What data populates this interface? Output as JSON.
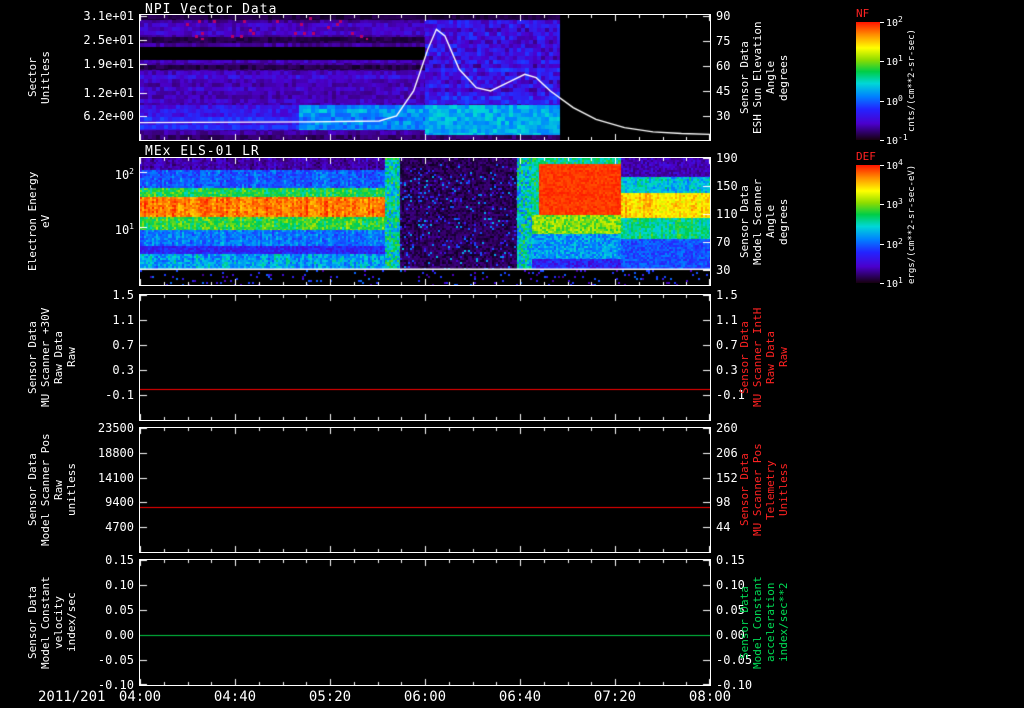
{
  "figure": {
    "background": "#000000",
    "foreground": "#ffffff",
    "x_axis": {
      "date_label": "2011/201",
      "tick_labels": [
        "04:00",
        "04:40",
        "05:20",
        "06:00",
        "06:40",
        "07:20",
        "08:00"
      ]
    }
  },
  "colorbars": [
    {
      "name": "NF",
      "name_color": "#ff2222",
      "tick_labels": [
        "10^2",
        "10^1",
        "10^0",
        "10^-1"
      ],
      "unit": "cnts/(cm**2-sr-sec)"
    },
    {
      "name": "DEF",
      "name_color": "#ff2222",
      "tick_labels": [
        "10^4",
        "10^3",
        "10^2",
        "10^1"
      ],
      "unit": "ergs/(cm**2-sr-sec-eV)"
    }
  ],
  "chart_data": [
    {
      "type": "heatmap",
      "title": "NPI Vector Data",
      "x_range": [
        "04:00",
        "08:00"
      ],
      "y_left": {
        "label_lines": [
          "Sector",
          "Unitless"
        ],
        "scale": "linear",
        "range": [
          0.25,
          31.25
        ],
        "ticks": [
          {
            "v": 31,
            "s": "3.1e+01"
          },
          {
            "v": 25,
            "s": "2.5e+01"
          },
          {
            "v": 19,
            "s": "1.9e+01"
          },
          {
            "v": 12,
            "s": "1.2e+01"
          },
          {
            "v": 6.2,
            "s": "6.2e+00"
          }
        ]
      },
      "y_right": {
        "label_lines": [
          "Sensor Data",
          "ESH Sun Elevation",
          "Angle",
          "degrees"
        ],
        "color": "#ffffff",
        "scale": "linear",
        "range": [
          15.6,
          90.6
        ],
        "ticks": [
          {
            "v": 90,
            "s": "90"
          },
          {
            "v": 75,
            "s": "75"
          },
          {
            "v": 60,
            "s": "60"
          },
          {
            "v": 45,
            "s": "45"
          },
          {
            "v": 30,
            "s": "30"
          }
        ]
      },
      "colorbar": "NF",
      "heatmap": {
        "seed": 7,
        "cell": 4,
        "data_end_frac": 0.737,
        "regions": [
          {
            "t": [
              0,
              0.737
            ],
            "y": [
              0,
              1
            ],
            "v": 0.14,
            "n": 0.1,
            "rv": 0.1
          },
          {
            "t": [
              0,
              0.737
            ],
            "y": [
              0,
              0.04
            ],
            "v": 0.04,
            "n": 0.05
          },
          {
            "t": [
              0,
              0.737
            ],
            "y": [
              0.18,
              0.22
            ],
            "v": 0.05,
            "n": 0.05
          },
          {
            "t": [
              0,
              0.5
            ],
            "y": [
              0.26,
              0.36
            ],
            "color": "#000000"
          },
          {
            "t": [
              0,
              0.737
            ],
            "y": [
              0.4,
              0.44
            ],
            "v": 0.05,
            "n": 0.06
          },
          {
            "t": [
              0,
              0.737
            ],
            "y": [
              0.48,
              0.72
            ],
            "v": 0.18,
            "n": 0.1,
            "rv": 0.08
          },
          {
            "t": [
              0,
              0.737
            ],
            "y": [
              0.72,
              0.92
            ],
            "v": 0.26,
            "n": 0.1,
            "rv": 0.08
          },
          {
            "t": [
              0.28,
              0.737
            ],
            "y": [
              0.72,
              0.92
            ],
            "v": 0.4,
            "n": 0.12,
            "rv": 0.08
          },
          {
            "t": [
              0,
              0.737
            ],
            "y": [
              0.96,
              1
            ],
            "v": 0.08,
            "n": 0.08
          },
          {
            "t": [
              0.5,
              0.737
            ],
            "y": [
              0.04,
              0.72
            ],
            "v": 0.22,
            "n": 0.16,
            "rv": 0.1
          },
          {
            "t": [
              0.5,
              0.737
            ],
            "y": [
              0.72,
              0.96
            ],
            "v": 0.45,
            "n": 0.12
          },
          {
            "t": [
              0.06,
              0.4
            ],
            "y": [
              0.02,
              0.2
            ],
            "color": "#bb0066",
            "sparse": 0.05,
            "cell": 3
          },
          {
            "t": [
              0.737,
              1
            ],
            "y": [
              0,
              1
            ],
            "color": "#000000",
            "cell": 6
          }
        ]
      },
      "overlay_line": {
        "name": "ESH Sun Elevation Angle (degrees)",
        "color": "#ffffff",
        "axis": "right",
        "points": [
          [
            0,
            26
          ],
          [
            0.3,
            26.5
          ],
          [
            0.42,
            27
          ],
          [
            0.45,
            30
          ],
          [
            0.48,
            45
          ],
          [
            0.505,
            70
          ],
          [
            0.52,
            82
          ],
          [
            0.535,
            78
          ],
          [
            0.56,
            58
          ],
          [
            0.59,
            47
          ],
          [
            0.615,
            45
          ],
          [
            0.645,
            50
          ],
          [
            0.675,
            55
          ],
          [
            0.695,
            53
          ],
          [
            0.72,
            45
          ],
          [
            0.76,
            35
          ],
          [
            0.8,
            28
          ],
          [
            0.85,
            23
          ],
          [
            0.9,
            20.5
          ],
          [
            0.95,
            19.5
          ],
          [
            1,
            19
          ]
        ]
      }
    },
    {
      "type": "heatmap",
      "title": "MEx ELS-01 LR",
      "x_range": [
        "04:00",
        "08:00"
      ],
      "y_left": {
        "label_lines": [
          "Electron Energy",
          "eV"
        ],
        "scale": "log",
        "range": [
          0.88,
          180
        ],
        "ticks": [
          {
            "v": 100,
            "s": "10^2"
          },
          {
            "v": 10,
            "s": "10^1"
          }
        ]
      },
      "y_right": {
        "label_lines": [
          "Sensor Data",
          "Model Scanner",
          "Angle",
          "degrees"
        ],
        "color": "#ffffff",
        "scale": "linear",
        "range": [
          8.6,
          190
        ],
        "ticks": [
          {
            "v": 190,
            "s": "190"
          },
          {
            "v": 150,
            "s": "150"
          },
          {
            "v": 110,
            "s": "110"
          },
          {
            "v": 70,
            "s": "70"
          },
          {
            "v": 30,
            "s": "30"
          }
        ]
      },
      "colorbar": "DEF",
      "heatmap": {
        "seed": 11,
        "cell": 2,
        "regions": [
          {
            "t": [
              0,
              1
            ],
            "y": [
              0,
              1
            ],
            "v": 0.09,
            "n": 0.12
          },
          {
            "t": [
              0,
              0.44
            ],
            "y": [
              0,
              0.1
            ],
            "v": 0.14,
            "n": 0.12,
            "cv": 0.08
          },
          {
            "t": [
              0,
              0.44
            ],
            "y": [
              0.1,
              0.24
            ],
            "v": 0.34,
            "n": 0.16,
            "cv": 0.1
          },
          {
            "t": [
              0,
              0.44
            ],
            "y": [
              0.24,
              0.31
            ],
            "v": 0.6,
            "n": 0.14,
            "cv": 0.1
          },
          {
            "t": [
              0,
              0.44
            ],
            "y": [
              0.31,
              0.47
            ],
            "v": 0.92,
            "n": 0.1,
            "cv": 0.08
          },
          {
            "t": [
              0,
              0.44
            ],
            "y": [
              0.47,
              0.57
            ],
            "v": 0.62,
            "n": 0.14,
            "cv": 0.1
          },
          {
            "t": [
              0,
              0.44
            ],
            "y": [
              0.57,
              0.7
            ],
            "v": 0.38,
            "n": 0.14,
            "cv": 0.1
          },
          {
            "t": [
              0,
              0.44
            ],
            "y": [
              0.7,
              0.76
            ],
            "v": 0.26,
            "n": 0.12
          },
          {
            "t": [
              0,
              0.44
            ],
            "y": [
              0.76,
              0.87
            ],
            "v": 0.44,
            "n": 0.18,
            "cv": 0.12
          },
          {
            "t": [
              0.43,
              0.457
            ],
            "y": [
              0,
              0.87
            ],
            "v": 0.52,
            "n": 0.28
          },
          {
            "t": [
              0.457,
              0.663
            ],
            "y": [
              0,
              0.87
            ],
            "v": 0.06,
            "n": 0.1
          },
          {
            "t": [
              0.457,
              0.663
            ],
            "y": [
              0.05,
              0.87
            ],
            "v": 0.32,
            "n": 0.3,
            "sparse": 0.1
          },
          {
            "t": [
              0.663,
              0.688
            ],
            "y": [
              0,
              0.87
            ],
            "v": 0.5,
            "n": 0.3
          },
          {
            "t": [
              0.688,
              0.845
            ],
            "y": [
              0,
              0.06
            ],
            "v": 0.55,
            "n": 0.2
          },
          {
            "t": [
              0.688,
              0.7
            ],
            "y": [
              0.05,
              0.45
            ],
            "v": 0.55,
            "n": 0.2
          },
          {
            "t": [
              0.7,
              0.845
            ],
            "y": [
              0.05,
              0.45
            ],
            "v": 0.97,
            "n": 0.05
          },
          {
            "t": [
              0.688,
              0.845
            ],
            "y": [
              0.45,
              0.6
            ],
            "v": 0.68,
            "n": 0.15
          },
          {
            "t": [
              0.688,
              0.845
            ],
            "y": [
              0.6,
              0.8
            ],
            "v": 0.42,
            "n": 0.18
          },
          {
            "t": [
              0.688,
              0.845
            ],
            "y": [
              0.8,
              0.87
            ],
            "v": 0.25,
            "n": 0.15
          },
          {
            "t": [
              0.845,
              1
            ],
            "y": [
              0,
              0.15
            ],
            "v": 0.16,
            "n": 0.14
          },
          {
            "t": [
              0.845,
              1
            ],
            "y": [
              0.15,
              0.28
            ],
            "v": 0.48,
            "n": 0.16,
            "cv": 0.1
          },
          {
            "t": [
              0.845,
              1
            ],
            "y": [
              0.28,
              0.48
            ],
            "v": 0.82,
            "n": 0.12,
            "cv": 0.08
          },
          {
            "t": [
              0.845,
              1
            ],
            "y": [
              0.48,
              0.64
            ],
            "v": 0.55,
            "n": 0.15,
            "cv": 0.1
          },
          {
            "t": [
              0.845,
              1
            ],
            "y": [
              0.64,
              0.87
            ],
            "v": 0.33,
            "n": 0.15
          },
          {
            "t": [
              0,
              1
            ],
            "y": [
              0.885,
              1
            ],
            "color": "#000000"
          },
          {
            "t": [
              0,
              1
            ],
            "y": [
              0.885,
              1
            ],
            "v": 0.25,
            "n": 0.25,
            "sparse": 0.07
          }
        ]
      },
      "overlay_line": {
        "name": "low-energy-marker-line",
        "color": "#ffffff",
        "axis": "left",
        "constant": 1.7
      }
    },
    {
      "type": "line",
      "y_left": {
        "label_lines": [
          "Sensor Data",
          "MU Scanner +30V",
          "Raw Data",
          "Raw"
        ],
        "scale": "linear",
        "range": [
          -0.5,
          1.5
        ],
        "ticks": [
          {
            "v": 1.5,
            "s": "1.5"
          },
          {
            "v": 1.1,
            "s": "1.1"
          },
          {
            "v": 0.7,
            "s": "0.7"
          },
          {
            "v": 0.3,
            "s": "0.3"
          },
          {
            "v": -0.1,
            "s": "-0.1"
          }
        ]
      },
      "y_right": {
        "label_lines": [
          "Sensor Data",
          "MU Scanner IntH",
          "Raw Data",
          "Raw"
        ],
        "color": "#ff2222",
        "scale": "linear",
        "range": [
          -0.5,
          1.5
        ],
        "ticks": [
          {
            "v": 1.5,
            "s": "1.5"
          },
          {
            "v": 1.1,
            "s": "1.1"
          },
          {
            "v": 0.7,
            "s": "0.7"
          },
          {
            "v": 0.3,
            "s": "0.3"
          },
          {
            "v": -0.1,
            "s": "-0.1"
          }
        ]
      },
      "series": [
        {
          "name": "MU Scanner +30V Raw Data Raw",
          "color": "#ff0000",
          "axis": "left",
          "constant": 0.0
        }
      ]
    },
    {
      "type": "line",
      "y_left": {
        "label_lines": [
          "Sensor Data",
          "Model Scanner Pos",
          "Raw",
          "unitless"
        ],
        "scale": "linear",
        "range": [
          0,
          23500
        ],
        "ticks": [
          {
            "v": 23500,
            "s": "23500"
          },
          {
            "v": 18800,
            "s": "18800"
          },
          {
            "v": 14100,
            "s": "14100"
          },
          {
            "v": 9400,
            "s": "9400"
          },
          {
            "v": 4700,
            "s": "4700"
          }
        ]
      },
      "y_right": {
        "label_lines": [
          "Sensor Data",
          "MU Scanner Pos",
          "Telemetry",
          "Unitless"
        ],
        "color": "#ff2222",
        "scale": "linear",
        "range": [
          -10,
          260
        ],
        "ticks": [
          {
            "v": 260,
            "s": "260"
          },
          {
            "v": 206,
            "s": "206"
          },
          {
            "v": 152,
            "s": "152"
          },
          {
            "v": 98,
            "s": "98"
          },
          {
            "v": 44,
            "s": "44"
          }
        ]
      },
      "series": [
        {
          "name": "Model Scanner Pos Raw",
          "color": "#ff0000",
          "axis": "left",
          "constant": 8600
        }
      ]
    },
    {
      "type": "line",
      "y_left": {
        "label_lines": [
          "Sensor Data",
          "Model Constant",
          "velocity",
          "index/sec"
        ],
        "scale": "linear",
        "range": [
          -0.1,
          0.15
        ],
        "ticks": [
          {
            "v": 0.15,
            "s": "0.15"
          },
          {
            "v": 0.1,
            "s": "0.10"
          },
          {
            "v": 0.05,
            "s": "0.05"
          },
          {
            "v": 0.0,
            "s": "0.00"
          },
          {
            "v": -0.05,
            "s": "-0.05"
          },
          {
            "v": -0.1,
            "s": "-0.10"
          }
        ]
      },
      "y_right": {
        "label_lines": [
          "Sensor Data",
          "Model Constant",
          "acceleration",
          "index/sec**2"
        ],
        "color": "#00dd55",
        "scale": "linear",
        "range": [
          -0.1,
          0.15
        ],
        "ticks": [
          {
            "v": 0.15,
            "s": "0.15"
          },
          {
            "v": 0.1,
            "s": "0.10"
          },
          {
            "v": 0.05,
            "s": "0.05"
          },
          {
            "v": 0.0,
            "s": "0.00"
          },
          {
            "v": -0.05,
            "s": "-0.05"
          },
          {
            "v": -0.1,
            "s": "-0.10"
          }
        ]
      },
      "series": [
        {
          "name": "Model Constant velocity",
          "color": "#00cc44",
          "axis": "left",
          "constant": 0.0
        }
      ]
    }
  ]
}
